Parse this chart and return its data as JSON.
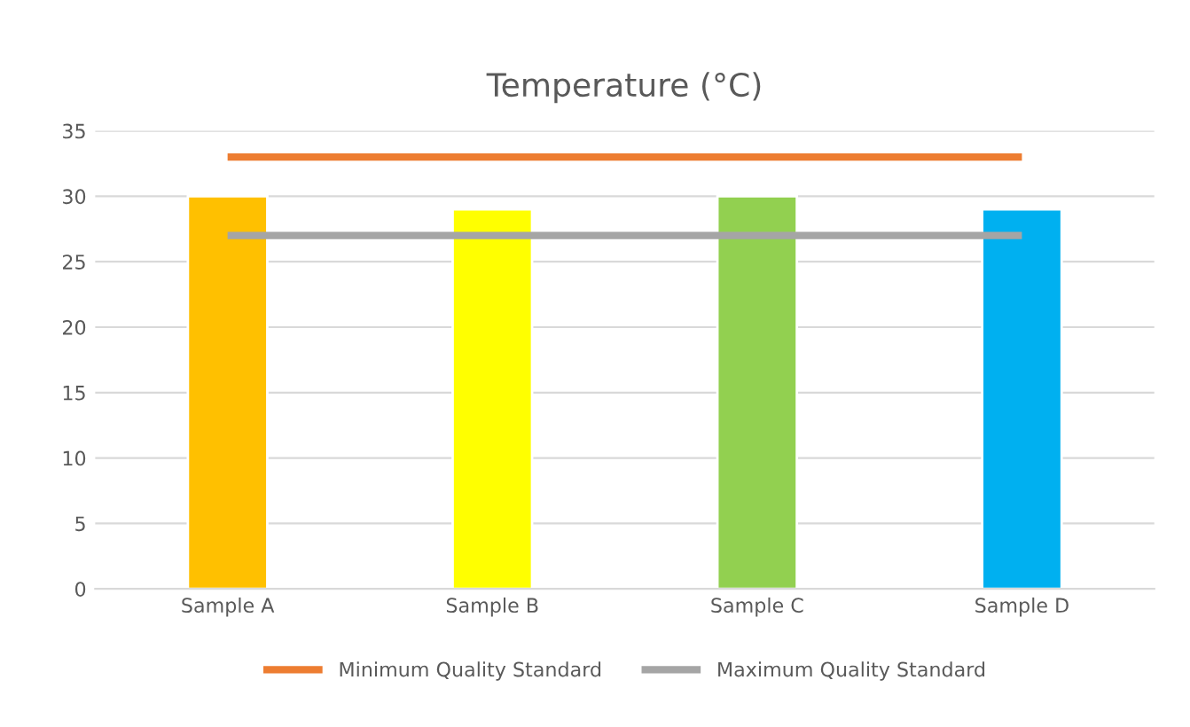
{
  "chart_data": {
    "type": "bar",
    "title": "Temperature (°C)",
    "categories": [
      "Sample A",
      "Sample B",
      "Sample C",
      "Sample D"
    ],
    "series": [
      {
        "colors": [
          "#ffc000",
          "#ffff00",
          "#92d050",
          "#00b0f0"
        ],
        "values": [
          30,
          29,
          30,
          29
        ]
      },
      {
        "type": "line",
        "name": "Minimum Quality Standard",
        "color": "#ed7d31",
        "values": [
          33,
          33,
          33,
          33
        ]
      },
      {
        "type": "line",
        "name": "Maximum Quality Standard",
        "color": "#a5a5a5",
        "values": [
          27,
          27,
          27,
          27
        ]
      }
    ],
    "ylim": [
      0,
      35
    ],
    "yticks": [
      0,
      5,
      10,
      15,
      20,
      25,
      30,
      35
    ],
    "grid": "y",
    "legend": "bottom"
  }
}
